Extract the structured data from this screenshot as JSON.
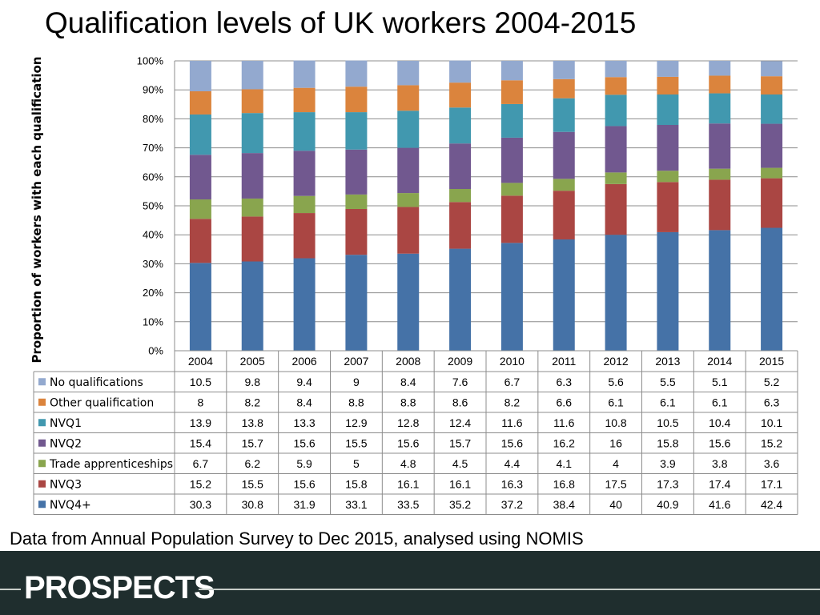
{
  "page": {
    "title": "Qualification levels of UK workers 2004-2015",
    "source": "Data from Annual Population Survey to Dec 2015, analysed using NOMIS",
    "logo": "PROSPECTS"
  },
  "chart_data": {
    "type": "bar",
    "stacked": true,
    "title": "Qualification levels of UK workers 2004-2015",
    "xlabel": "",
    "ylabel": "Proportion of workers with each qualification",
    "ylim": [
      0,
      100
    ],
    "yticks": [
      "0%",
      "10%",
      "20%",
      "30%",
      "40%",
      "50%",
      "60%",
      "70%",
      "80%",
      "90%",
      "100%"
    ],
    "grid": true,
    "legend": "data-table-left",
    "categories": [
      "2004",
      "2005",
      "2006",
      "2007",
      "2008",
      "2009",
      "2010",
      "2011",
      "2012",
      "2013",
      "2014",
      "2015"
    ],
    "series": [
      {
        "name": "NVQ4+",
        "color": "#4572a7",
        "values": [
          30.3,
          30.8,
          31.9,
          33.1,
          33.5,
          35.2,
          37.2,
          38.4,
          40,
          40.9,
          41.6,
          42.4
        ]
      },
      {
        "name": "NVQ3",
        "color": "#aa4643",
        "values": [
          15.2,
          15.5,
          15.6,
          15.8,
          16.1,
          16.1,
          16.3,
          16.8,
          17.5,
          17.3,
          17.4,
          17.1
        ]
      },
      {
        "name": "Trade apprenticeships",
        "color": "#89a54e",
        "values": [
          6.7,
          6.2,
          5.9,
          5,
          4.8,
          4.5,
          4.4,
          4.1,
          4,
          3.9,
          3.8,
          3.6
        ]
      },
      {
        "name": "NVQ2",
        "color": "#71588f",
        "values": [
          15.4,
          15.7,
          15.6,
          15.5,
          15.6,
          15.7,
          15.6,
          16.2,
          16,
          15.8,
          15.6,
          15.2
        ]
      },
      {
        "name": "NVQ1",
        "color": "#4198af",
        "values": [
          13.9,
          13.8,
          13.3,
          12.9,
          12.8,
          12.4,
          11.6,
          11.6,
          10.8,
          10.5,
          10.4,
          10.1
        ]
      },
      {
        "name": "Other qualification",
        "color": "#db843d",
        "values": [
          8,
          8.2,
          8.4,
          8.8,
          8.8,
          8.6,
          8.2,
          6.6,
          6.1,
          6.1,
          6.1,
          6.3
        ]
      },
      {
        "name": "No qualifications",
        "color": "#93a9cf",
        "values": [
          10.5,
          9.8,
          9.4,
          9,
          8.4,
          7.6,
          6.7,
          6.3,
          5.6,
          5.5,
          5.1,
          5.2
        ]
      }
    ],
    "table_row_order": [
      "No qualifications",
      "Other qualification",
      "NVQ1",
      "NVQ2",
      "Trade apprenticeships",
      "NVQ3",
      "NVQ4+"
    ]
  }
}
